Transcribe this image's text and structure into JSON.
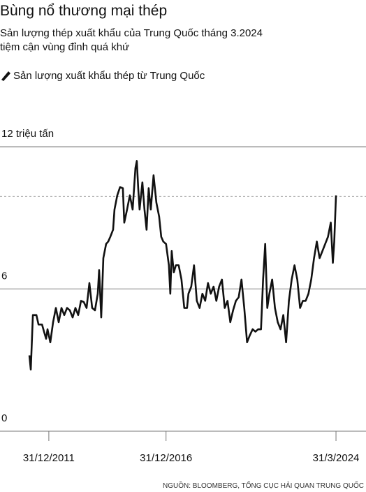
{
  "chart_data": {
    "type": "line",
    "title": "Bùng nổ thương mại thép",
    "subtitle": [
      "Sản lượng thép xuất khẩu của Trung Quốc tháng 3.2024",
      "tiệm cận vùng đỉnh quá khứ"
    ],
    "source": "NGUỒN: BLOOMBERG, TỔNG CỤC HẢI QUAN TRUNG QUỐC",
    "ylim": [
      0,
      12
    ],
    "yticks": [
      {
        "value": 12,
        "label": "12 triệu tấn"
      },
      6,
      0
    ],
    "xlim": [
      2009.917,
      2025.53
    ],
    "xticks": [
      {
        "value": 2012,
        "label": "31/12/2011"
      },
      {
        "value": 2017,
        "label": "31/12/2016"
      },
      {
        "value": 2024.25,
        "label": "31/3/2024"
      }
    ],
    "grid": true,
    "dashed_line": 9.9,
    "x": [
      2011.17,
      2011.23,
      2011.32,
      2011.47,
      2011.56,
      2011.71,
      2011.795,
      2011.884,
      2011.944,
      2012.063,
      2012.182,
      2012.301,
      2012.42,
      2012.539,
      2012.658,
      2012.777,
      2012.896,
      2013.015,
      2013.134,
      2013.253,
      2013.372,
      2013.491,
      2013.61,
      2013.73,
      2013.849,
      2013.968,
      2014.087,
      2014.146,
      2014.235,
      2014.325,
      2014.444,
      2014.533,
      2014.622,
      2014.741,
      2014.801,
      2014.92,
      2015.039,
      2015.158,
      2015.218,
      2015.337,
      2015.456,
      2015.575,
      2015.694,
      2015.753,
      2015.813,
      2015.872,
      2015.991,
      2016.081,
      2016.17,
      2016.259,
      2016.349,
      2016.468,
      2016.587,
      2016.706,
      2016.795,
      2016.884,
      2017.0,
      2017.122,
      2017.182,
      2017.241,
      2017.331,
      2017.42,
      2017.539,
      2017.658,
      2017.777,
      2017.896,
      2017.956,
      2018.075,
      2018.194,
      2018.313,
      2018.432,
      2018.551,
      2018.67,
      2018.789,
      2018.908,
      2019.027,
      2019.146,
      2019.265,
      2019.384,
      2019.503,
      2019.622,
      2019.741,
      2019.86,
      2019.98,
      2020.099,
      2020.218,
      2020.337,
      2020.456,
      2020.575,
      2020.694,
      2020.813,
      2020.932,
      2021.051,
      2021.14,
      2021.23,
      2021.319,
      2021.408,
      2021.527,
      2021.646,
      2021.765,
      2021.884,
      2022.003,
      2022.122,
      2022.241,
      2022.36,
      2022.48,
      2022.599,
      2022.718,
      2022.837,
      2022.956,
      2023.075,
      2023.194,
      2023.313,
      2023.432,
      2023.551,
      2023.67,
      2023.789,
      2023.908,
      2024.027,
      2024.116,
      2024.176,
      2024.25
    ],
    "series": [
      {
        "name": "Sản lượng xuất khẩu thép từ Trung Quốc",
        "color": "#111111",
        "values": [
          3.2,
          2.6,
          4.9,
          4.9,
          4.5,
          4.5,
          4.2,
          3.9,
          4.3,
          3.75,
          4.6,
          5.2,
          4.6,
          5.2,
          4.9,
          5.2,
          5.1,
          4.8,
          5.2,
          4.9,
          5.5,
          5.45,
          5.2,
          6.25,
          5.2,
          5.1,
          5.8,
          6.8,
          4.8,
          7.3,
          7.9,
          8.0,
          8.2,
          8.5,
          9.35,
          9.95,
          10.3,
          10.25,
          8.8,
          9.35,
          9.95,
          9.35,
          11.1,
          11.4,
          10.25,
          9.35,
          10.5,
          9.35,
          8.5,
          10.25,
          9.35,
          10.8,
          9.65,
          9.05,
          8.2,
          8.0,
          7.9,
          7.0,
          5.8,
          7.6,
          6.7,
          7.0,
          7.0,
          6.4,
          5.2,
          5.2,
          5.8,
          6.1,
          7.0,
          5.5,
          5.2,
          5.8,
          5.5,
          6.25,
          5.8,
          6.1,
          5.5,
          6.1,
          6.4,
          5.2,
          5.5,
          4.6,
          5.1,
          5.5,
          5.65,
          6.4,
          5.2,
          3.75,
          4.05,
          4.3,
          4.2,
          4.3,
          4.3,
          6.4,
          7.9,
          5.2,
          5.8,
          6.4,
          5.2,
          4.6,
          4.3,
          4.9,
          3.75,
          5.5,
          6.4,
          7.0,
          6.4,
          5.2,
          5.5,
          5.5,
          5.8,
          6.4,
          7.3,
          8.0,
          7.3,
          7.6,
          7.9,
          8.2,
          8.8,
          7.1,
          8.0,
          9.95
        ]
      }
    ]
  }
}
